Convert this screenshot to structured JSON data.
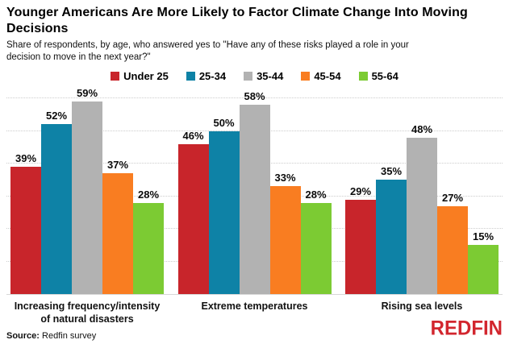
{
  "header": {
    "title": "Younger Americans Are More Likely to Factor Climate Change Into Moving Decisions",
    "subtitle": "Share of respondents, by age, who answered yes to \"Have any of these risks played a role in your decision to move in the next year?\""
  },
  "chart_data": {
    "type": "bar",
    "title": "Younger Americans Are More Likely to Factor Climate Change Into Moving Decisions",
    "subtitle": "Share of respondents, by age, who answered yes to \"Have any of these risks played a role in your decision to move in the next year?\"",
    "categories": [
      "Increasing frequency/intensity of natural disasters",
      "Extreme temperatures",
      "Rising sea levels"
    ],
    "series": [
      {
        "name": "Under 25",
        "color": "#c8252b",
        "values": [
          39,
          46,
          29
        ]
      },
      {
        "name": "25-34",
        "color": "#0e82a6",
        "values": [
          52,
          50,
          35
        ]
      },
      {
        "name": "35-44",
        "color": "#b2b2b2",
        "values": [
          59,
          58,
          48
        ]
      },
      {
        "name": "45-54",
        "color": "#f97d21",
        "values": [
          37,
          33,
          27
        ]
      },
      {
        "name": "55-64",
        "color": "#7ccb33",
        "values": [
          28,
          28,
          15
        ]
      }
    ],
    "value_suffix": "%",
    "ylabel": "",
    "xlabel": "",
    "ylim": [
      0,
      62.5
    ],
    "gridlines": [
      10,
      20,
      30,
      40,
      50,
      60
    ],
    "grid_style": "dotted",
    "legend_position": "top",
    "y_axis_labels_visible": false
  },
  "footer": {
    "source_label": "Source:",
    "source_text": "Redfin survey",
    "logo_text": "REDFIN",
    "logo_color": "#d2262e"
  }
}
